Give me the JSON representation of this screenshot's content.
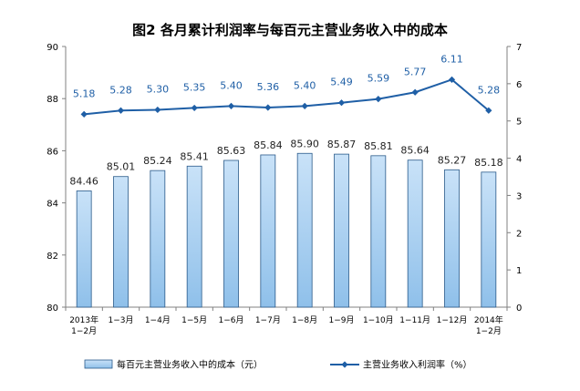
{
  "chart_data": {
    "type": "bar+line",
    "title": "图2  各月累计利润率与每百元主营业务收入中的成本",
    "categories": [
      [
        "2013年",
        "1−2月"
      ],
      [
        "1−3月"
      ],
      [
        "1−4月"
      ],
      [
        "1−5月"
      ],
      [
        "1−6月"
      ],
      [
        "1−7月"
      ],
      [
        "1−8月"
      ],
      [
        "1−9月"
      ],
      [
        "1−10月"
      ],
      [
        "1−11月"
      ],
      [
        "1−12月"
      ],
      [
        "2014年",
        "1−2月"
      ]
    ],
    "series": [
      {
        "name": "每百元主营业务收入中的成本（元）",
        "type": "bar",
        "axis": "left",
        "values": [
          84.46,
          85.01,
          85.24,
          85.41,
          85.63,
          85.84,
          85.9,
          85.87,
          85.81,
          85.64,
          85.27,
          85.18
        ],
        "labels": [
          "84.46",
          "85.01",
          "85.24",
          "85.41",
          "85.63",
          "85.84",
          "85.90",
          "85.87",
          "85.81",
          "85.64",
          "85.27",
          "85.18"
        ]
      },
      {
        "name": "主营业务收入利润率（%）",
        "type": "line",
        "axis": "right",
        "values": [
          5.18,
          5.28,
          5.3,
          5.35,
          5.4,
          5.36,
          5.4,
          5.49,
          5.59,
          5.77,
          6.11,
          5.28
        ],
        "labels": [
          "5.18",
          "5.28",
          "5.30",
          "5.35",
          "5.40",
          "5.36",
          "5.40",
          "5.49",
          "5.59",
          "5.77",
          "6.11",
          "5.28"
        ]
      }
    ],
    "y_left": {
      "range": [
        80,
        90
      ],
      "ticks": [
        "80",
        "82",
        "84",
        "86",
        "88",
        "90"
      ]
    },
    "y_right": {
      "range": [
        0,
        7
      ],
      "ticks": [
        "0",
        "1",
        "2",
        "3",
        "4",
        "5",
        "6",
        "7"
      ]
    },
    "grid": false,
    "legend_position": "bottom",
    "colors": {
      "bar_fill_top": "#c9e2f8",
      "bar_fill_bottom": "#8fc0ea",
      "bar_stroke": "#2a5a8a",
      "line": "#1f5fa6",
      "axis": "#808080"
    }
  }
}
